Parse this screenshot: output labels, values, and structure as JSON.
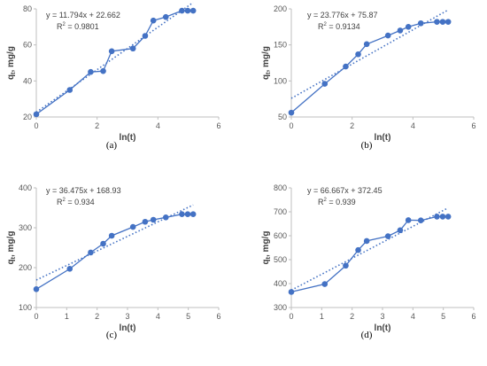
{
  "chart_data": [
    {
      "type": "scatter",
      "caption": "(a)",
      "xlabel": "ln(t)",
      "ylabel_main": "q",
      "ylabel_sub": "t",
      "ylabel_rest": ", mg/g",
      "xlim": [
        0,
        6
      ],
      "ylim": [
        20,
        80
      ],
      "yticks": [
        20,
        40,
        60,
        80
      ],
      "xticks": [
        0,
        2,
        4,
        6
      ],
      "grid": false,
      "series": [
        {
          "x": [
            0,
            1.1,
            1.79,
            2.2,
            2.48,
            3.18,
            3.58,
            3.85,
            4.26,
            4.79,
            4.98,
            5.16
          ],
          "y": [
            21.5,
            35,
            45,
            45.5,
            56.5,
            58,
            65,
            73.5,
            75.5,
            79,
            79,
            79
          ]
        }
      ],
      "trendline": {
        "slope": 11.794,
        "intercept": 22.662,
        "x_range": [
          0,
          5.16
        ]
      },
      "equation": "y = 11.794x + 22.662",
      "r2_label": "R",
      "r2_exp": "2",
      "r2_value": " = 0.9801"
    },
    {
      "type": "scatter",
      "caption": "(b)",
      "xlabel": "ln(t)",
      "ylabel_main": "q",
      "ylabel_sub": "t",
      "ylabel_rest": ", mg/g",
      "xlim": [
        0,
        6
      ],
      "ylim": [
        50,
        200
      ],
      "yticks": [
        50,
        100,
        150,
        200
      ],
      "xticks": [
        0,
        2,
        4,
        6
      ],
      "grid": false,
      "series": [
        {
          "x": [
            0,
            1.1,
            1.79,
            2.2,
            2.48,
            3.18,
            3.58,
            3.85,
            4.26,
            4.79,
            4.98,
            5.16
          ],
          "y": [
            56,
            96,
            120,
            137,
            151,
            163,
            170,
            175,
            180,
            182,
            182,
            182
          ]
        }
      ],
      "trendline": {
        "slope": 23.776,
        "intercept": 75.87,
        "x_range": [
          0,
          5.16
        ]
      },
      "equation": "y = 23.776x + 75.87",
      "r2_label": "R",
      "r2_exp": "2",
      "r2_value": " = 0.9134"
    },
    {
      "type": "scatter",
      "caption": "(c)",
      "xlabel": "ln(t)",
      "ylabel_main": "q",
      "ylabel_sub": "t",
      "ylabel_rest": ", mg/g",
      "xlim": [
        0,
        6
      ],
      "ylim": [
        100,
        400
      ],
      "yticks": [
        100,
        200,
        300,
        400
      ],
      "xticks": [
        0,
        1,
        2,
        3,
        4,
        5,
        6
      ],
      "grid": false,
      "series": [
        {
          "x": [
            0,
            1.1,
            1.79,
            2.2,
            2.48,
            3.18,
            3.58,
            3.85,
            4.26,
            4.79,
            4.98,
            5.16
          ],
          "y": [
            146,
            197,
            238,
            260,
            280,
            302,
            315,
            320,
            326,
            334,
            334,
            334
          ]
        }
      ],
      "trendline": {
        "slope": 36.475,
        "intercept": 168.93,
        "x_range": [
          0,
          5.16
        ]
      },
      "equation": "y = 36.475x + 168.93",
      "r2_label": "R",
      "r2_exp": "2",
      "r2_value": " = 0.934"
    },
    {
      "type": "scatter",
      "caption": "(d)",
      "xlabel": "ln(t)",
      "ylabel_main": "q",
      "ylabel_sub": "t",
      "ylabel_rest": ", mg/g",
      "xlim": [
        0,
        6
      ],
      "ylim": [
        300,
        800
      ],
      "yticks": [
        300,
        400,
        500,
        600,
        700,
        800
      ],
      "xticks": [
        0,
        1,
        2,
        3,
        4,
        5,
        6
      ],
      "grid": false,
      "series": [
        {
          "x": [
            0,
            1.1,
            1.79,
            2.2,
            2.48,
            3.18,
            3.58,
            3.85,
            4.26,
            4.79,
            4.98,
            5.16
          ],
          "y": [
            365,
            398,
            475,
            540,
            578,
            598,
            623,
            665,
            664,
            680,
            680,
            680
          ]
        }
      ],
      "trendline": {
        "slope": 66.667,
        "intercept": 372.45,
        "x_range": [
          0,
          5.16
        ]
      },
      "equation": "y = 66.667x + 372.45",
      "r2_label": "R",
      "r2_exp": "2",
      "r2_value": " = 0.939"
    }
  ],
  "colors": {
    "series": "#4472c4",
    "axis": "#bfbfbf",
    "text": "#404040"
  }
}
